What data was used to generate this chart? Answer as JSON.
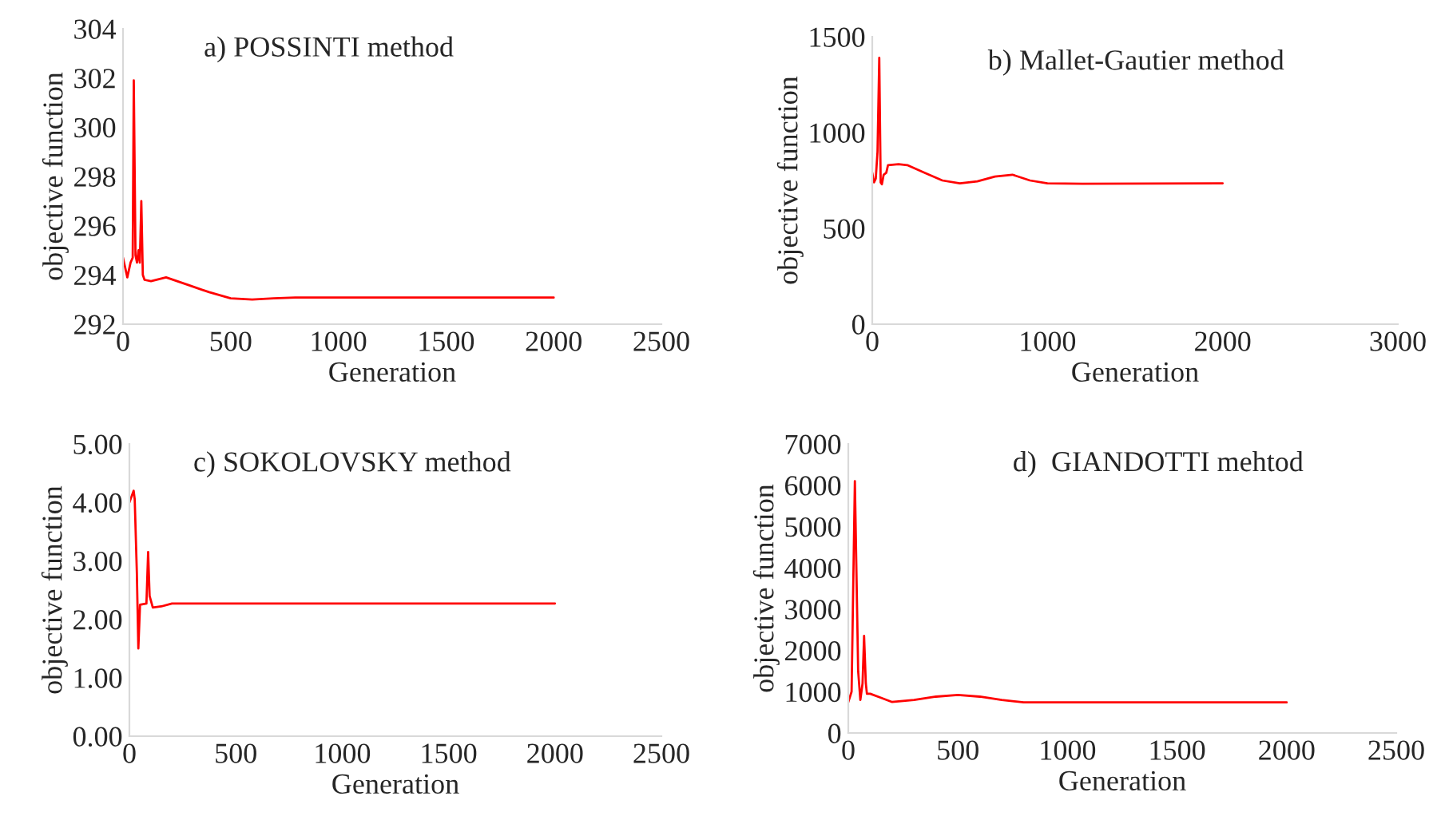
{
  "chart_data": [
    {
      "type": "line",
      "title": "a) POSSINTI method",
      "xlabel": "Generation",
      "ylabel": "objective function",
      "grid": false,
      "marker": "none",
      "line_style": "solid",
      "series": [
        {
          "color": "#ff0000",
          "x": [
            0,
            10,
            20,
            35,
            45,
            50,
            58,
            65,
            72,
            78,
            85,
            92,
            100,
            130,
            200,
            300,
            400,
            500,
            600,
            700,
            800,
            1000,
            2000
          ],
          "values": [
            294.7,
            294.3,
            293.9,
            294.5,
            294.7,
            301.9,
            294.8,
            294.5,
            295,
            294.5,
            297,
            294,
            293.8,
            293.75,
            293.9,
            293.6,
            293.3,
            293.05,
            293.0,
            293.05,
            293.08,
            293.08,
            293.08
          ]
        }
      ],
      "xlim": [
        0,
        2500
      ],
      "xticks": [
        0,
        500,
        1000,
        1500,
        2000,
        2500
      ],
      "ylim": [
        292,
        304
      ],
      "yticks": [
        292,
        294,
        296,
        298,
        300,
        302,
        304
      ]
    },
    {
      "type": "line",
      "title": "b) Mallet-Gautier method",
      "xlabel": "Generation",
      "ylabel": "objective function",
      "grid": false,
      "marker": "none",
      "line_style": "solid",
      "series": [
        {
          "color": "#ff0000",
          "x": [
            0,
            10,
            20,
            30,
            40,
            48,
            55,
            65,
            80,
            90,
            150,
            200,
            300,
            400,
            500,
            600,
            700,
            800,
            900,
            1000,
            1200,
            2000
          ],
          "values": [
            790,
            740,
            760,
            900,
            1390,
            740,
            730,
            780,
            790,
            830,
            835,
            830,
            790,
            750,
            735,
            745,
            770,
            780,
            750,
            735,
            733,
            735
          ]
        }
      ],
      "xlim": [
        0,
        3000
      ],
      "xticks": [
        0,
        1000,
        2000,
        3000
      ],
      "ylim": [
        0,
        1500
      ],
      "yticks": [
        0,
        500,
        1000,
        1500
      ]
    },
    {
      "type": "line",
      "title": "c) SOKOLOVSKY method",
      "xlabel": "Generation",
      "ylabel": "objective function",
      "grid": false,
      "marker": "none",
      "line_style": "solid",
      "series": [
        {
          "color": "#ff0000",
          "x": [
            0,
            10,
            20,
            25,
            35,
            42,
            50,
            80,
            88,
            95,
            110,
            150,
            200,
            2000
          ],
          "values": [
            4.0,
            4.1,
            4.2,
            4.05,
            2.8,
            1.5,
            2.25,
            2.27,
            3.15,
            2.4,
            2.2,
            2.22,
            2.27,
            2.27
          ]
        }
      ],
      "xlim": [
        0,
        2500
      ],
      "xticks": [
        0,
        500,
        1000,
        1500,
        2000,
        2500
      ],
      "ylim": [
        0,
        5
      ],
      "yticks": [
        {
          "value": 0,
          "label": "0.00"
        },
        {
          "value": 1,
          "label": "1.00"
        },
        {
          "value": 2,
          "label": "2.00"
        },
        {
          "value": 3,
          "label": "3.00"
        },
        {
          "value": 4,
          "label": "4.00"
        },
        {
          "value": 5,
          "label": "5.00"
        }
      ]
    },
    {
      "type": "line",
      "title": "d)  GIANDOTTI mehtod",
      "xlabel": "Generation",
      "ylabel": "objective function",
      "grid": false,
      "marker": "none",
      "line_style": "solid",
      "series": [
        {
          "color": "#ff0000",
          "x": [
            0,
            15,
            30,
            45,
            55,
            65,
            72,
            80,
            85,
            100,
            150,
            200,
            300,
            400,
            500,
            600,
            700,
            800,
            1000,
            2000
          ],
          "values": [
            750,
            1000,
            6100,
            1500,
            800,
            1200,
            2350,
            1200,
            950,
            950,
            850,
            750,
            800,
            880,
            920,
            880,
            800,
            740,
            740,
            740
          ]
        }
      ],
      "xlim": [
        0,
        2500
      ],
      "xticks": [
        0,
        500,
        1000,
        1500,
        2000,
        2500
      ],
      "ylim": [
        0,
        7000
      ],
      "yticks": [
        0,
        1000,
        2000,
        3000,
        4000,
        5000,
        6000,
        7000
      ]
    }
  ]
}
